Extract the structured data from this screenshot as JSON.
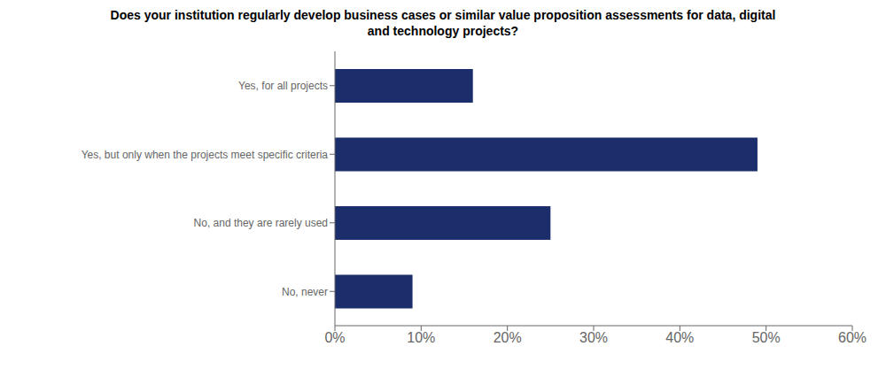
{
  "chart_data": {
    "type": "bar",
    "title": "Does your institution regularly develop business cases or similar value proposition assessments for data, digital\nand technology projects?",
    "orientation": "horizontal",
    "categories": [
      "No, never",
      "No, and they are rarely used",
      "Yes, but only when the projects meet specific criteria",
      "Yes, for all projects"
    ],
    "values": [
      9,
      25,
      49,
      16
    ],
    "color": "#1B2E6B",
    "xlim": [
      0,
      60
    ],
    "xticks": [
      {
        "value": 0,
        "label": "0%"
      },
      {
        "value": 10,
        "label": "10%"
      },
      {
        "value": 20,
        "label": "20%"
      },
      {
        "value": 30,
        "label": "30%"
      },
      {
        "value": 40,
        "label": "40%"
      },
      {
        "value": 50,
        "label": "50%"
      },
      {
        "value": 60,
        "label": "60%"
      }
    ],
    "grid": false
  }
}
